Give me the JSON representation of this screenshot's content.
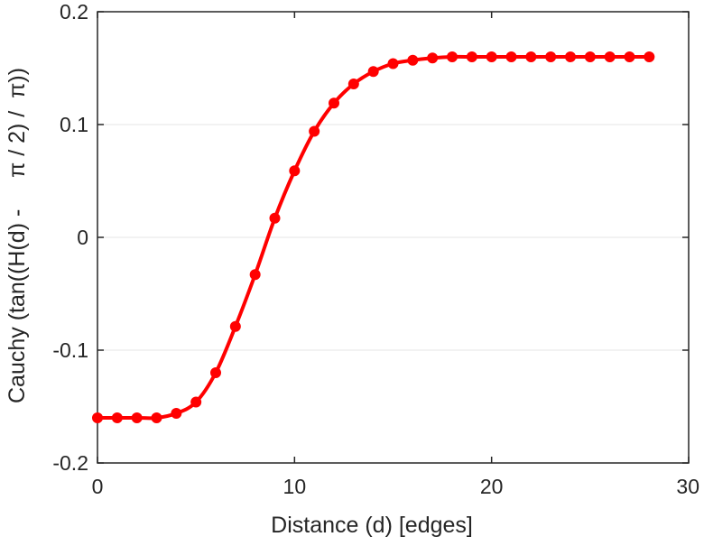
{
  "chart_data": {
    "type": "line",
    "title": "",
    "xlabel": "Distance (d) [edges]",
    "ylabel": "Cauchy (tan((H(d) -     π / 2) /  π))",
    "xlim": [
      0,
      30
    ],
    "ylim": [
      -0.2,
      0.2
    ],
    "xticks": [
      0,
      10,
      20,
      30
    ],
    "xtick_labels": [
      "0",
      "10",
      "20",
      "30"
    ],
    "yticks": [
      -0.2,
      -0.1,
      0,
      0.1,
      0.2
    ],
    "ytick_labels": [
      "-0.2",
      "-0.1",
      "0",
      "0.1",
      "0.2"
    ],
    "grid": "horizontal",
    "marker": "circle",
    "color": "#ff0000",
    "series": [
      {
        "x": [
          0,
          1,
          2,
          3,
          4,
          5,
          6,
          7,
          8,
          9,
          10,
          11,
          12,
          13,
          14,
          15,
          16,
          17,
          18,
          19,
          20,
          21,
          22,
          23,
          24,
          25,
          26,
          27,
          28
        ],
        "values": [
          -0.16,
          -0.16,
          -0.16,
          -0.16,
          -0.156,
          -0.146,
          -0.12,
          -0.079,
          -0.033,
          0.017,
          0.059,
          0.094,
          0.119,
          0.136,
          0.147,
          0.154,
          0.157,
          0.159,
          0.16,
          0.16,
          0.16,
          0.16,
          0.16,
          0.16,
          0.16,
          0.16,
          0.16,
          0.16,
          0.16
        ]
      }
    ]
  }
}
